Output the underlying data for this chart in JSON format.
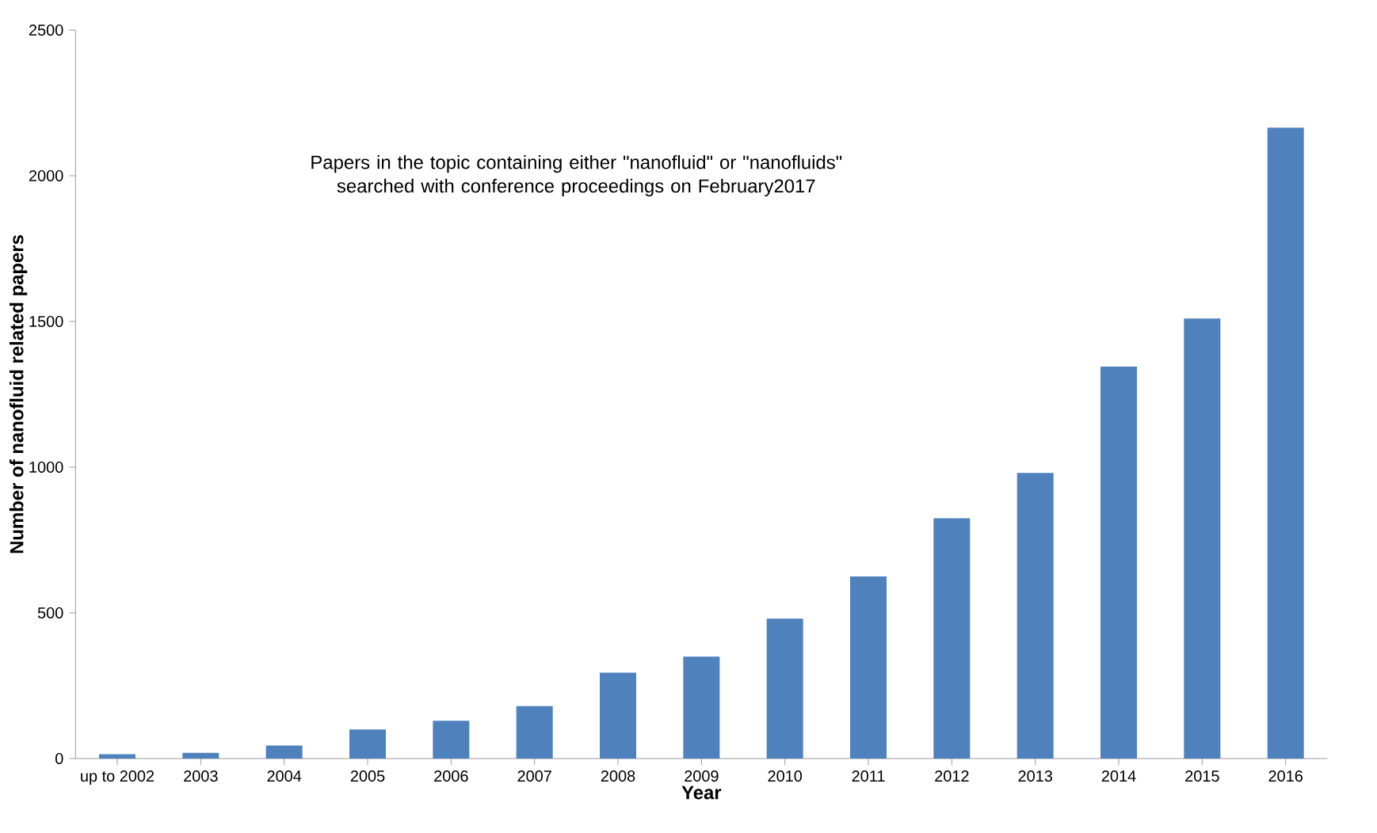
{
  "chart_data": {
    "type": "bar",
    "xlabel": "Year",
    "ylabel": "Number of nanofluid related papers",
    "categories": [
      "up to 2002",
      "2003",
      "2004",
      "2005",
      "2006",
      "2007",
      "2008",
      "2009",
      "2010",
      "2011",
      "2012",
      "2013",
      "2014",
      "2015",
      "2016"
    ],
    "values": [
      15,
      20,
      45,
      100,
      130,
      180,
      295,
      350,
      480,
      625,
      825,
      980,
      1345,
      1510,
      2165
    ],
    "color": "#4f81bd",
    "ylim": [
      0,
      2500
    ],
    "yticks": [
      0,
      500,
      1000,
      1500,
      2000,
      2500
    ],
    "grid": false,
    "annotations": [
      "Papers in the topic containing either \"nanofluid\" or \"nanofluids\" searched with conference proceedings on February2017"
    ]
  }
}
